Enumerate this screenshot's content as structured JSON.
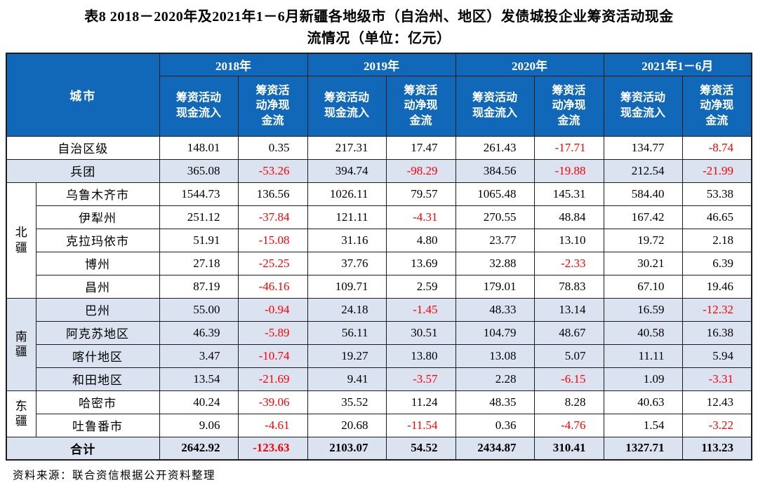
{
  "title": {
    "line1": "表8 2018－2020年及2021年1－6月新疆各地级市（自治州、地区）发债城投企业筹资活动现金",
    "line2": "流情况（单位：亿元）"
  },
  "source": "资料来源：联合资信根据公开资料整理",
  "colors": {
    "header_bg": "#1168b8",
    "stripe_bg": "#dbe3f1",
    "negative_text": "#fe0000",
    "border": "#1c1c1c"
  },
  "table": {
    "city_header": "城市",
    "years": [
      "2018年",
      "2019年",
      "2020年",
      "2021年1－6月"
    ],
    "sub_in": "筹资活动\n现金流入",
    "sub_net": "筹资活\n动净现\n金流",
    "rows": [
      {
        "city": "自治区级",
        "full": true,
        "stripe": false,
        "values": [
          148.01,
          0.35,
          217.31,
          17.47,
          261.43,
          -17.71,
          134.77,
          -8.74
        ]
      },
      {
        "city": "兵团",
        "full": true,
        "stripe": true,
        "values": [
          365.08,
          -53.26,
          394.74,
          -98.29,
          384.56,
          -19.88,
          212.54,
          -21.99
        ]
      },
      {
        "group": "北疆",
        "span": 5,
        "city": "乌鲁木齐市",
        "stripe": false,
        "values": [
          1544.73,
          136.56,
          1026.11,
          79.57,
          1065.48,
          145.31,
          584.4,
          53.38
        ]
      },
      {
        "city": "伊犁州",
        "stripe": false,
        "values": [
          251.12,
          -37.84,
          121.11,
          -4.31,
          270.55,
          48.84,
          167.42,
          46.65
        ]
      },
      {
        "city": "克拉玛依市",
        "stripe": false,
        "values": [
          51.91,
          -15.08,
          31.16,
          4.8,
          23.77,
          13.1,
          19.72,
          2.18
        ]
      },
      {
        "city": "博州",
        "stripe": false,
        "values": [
          27.18,
          -25.25,
          37.76,
          13.69,
          32.88,
          -2.33,
          30.21,
          6.39
        ]
      },
      {
        "city": "昌州",
        "stripe": false,
        "values": [
          87.19,
          -46.16,
          109.71,
          2.59,
          179.01,
          78.83,
          67.1,
          19.46
        ]
      },
      {
        "group": "南疆",
        "span": 4,
        "city": "巴州",
        "stripe": true,
        "values": [
          55.0,
          -0.94,
          24.18,
          -1.45,
          48.33,
          13.14,
          16.59,
          -12.32
        ]
      },
      {
        "city": "阿克苏地区",
        "stripe": true,
        "values": [
          46.39,
          -5.89,
          56.11,
          30.51,
          104.79,
          48.67,
          40.58,
          16.38
        ]
      },
      {
        "city": "喀什地区",
        "stripe": true,
        "values": [
          3.47,
          -10.74,
          19.27,
          13.8,
          13.08,
          5.07,
          11.11,
          5.94
        ]
      },
      {
        "city": "和田地区",
        "stripe": true,
        "values": [
          13.54,
          -21.69,
          9.41,
          -3.57,
          2.28,
          -6.15,
          1.09,
          -3.31
        ]
      },
      {
        "group": "东疆",
        "span": 2,
        "city": "哈密市",
        "stripe": false,
        "values": [
          40.24,
          -39.06,
          35.52,
          11.24,
          48.35,
          8.28,
          40.63,
          12.43
        ]
      },
      {
        "city": "吐鲁番市",
        "stripe": false,
        "values": [
          9.06,
          -4.61,
          20.68,
          -11.54,
          0.36,
          -4.76,
          1.54,
          -3.22
        ]
      },
      {
        "city": "合计",
        "full": true,
        "stripe": true,
        "total": true,
        "values": [
          2642.92,
          -123.63,
          2103.07,
          54.52,
          2434.87,
          310.41,
          1327.71,
          113.23
        ]
      }
    ]
  }
}
